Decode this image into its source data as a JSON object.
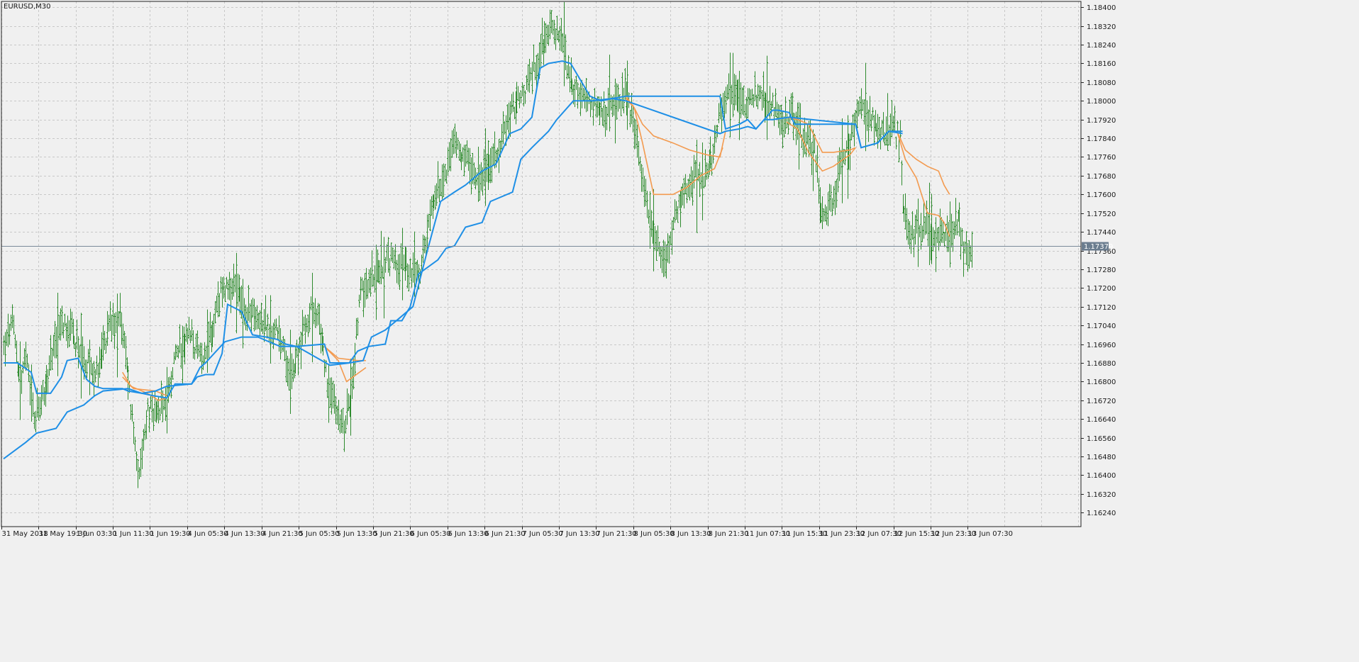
{
  "chart_data": {
    "type": "line",
    "title": "EURUSD,M30",
    "ylim": [
      1.1618,
      1.18425
    ],
    "y_ticks": [
      1.1624,
      1.1632,
      1.164,
      1.1648,
      1.1656,
      1.1664,
      1.1672,
      1.168,
      1.1688,
      1.1696,
      1.1704,
      1.1712,
      1.172,
      1.1728,
      1.1736,
      1.1744,
      1.1752,
      1.176,
      1.1768,
      1.1776,
      1.1784,
      1.1792,
      1.18,
      1.1808,
      1.1816,
      1.1824,
      1.1832,
      1.184
    ],
    "y_tick_labels": [
      "1.16240",
      "1.16320",
      "1.16400",
      "1.16480",
      "1.16560",
      "1.16640",
      "1.16720",
      "1.16800",
      "1.16880",
      "1.16960",
      "1.17040",
      "1.17120",
      "1.17200",
      "1.17280",
      "1.17360",
      "1.17440",
      "1.17520",
      "1.17600",
      "1.17680",
      "1.17760",
      "1.17840",
      "1.17920",
      "1.18000",
      "1.18080",
      "1.18160",
      "1.18240",
      "1.18320",
      "1.18400"
    ],
    "x_tick_labels": [
      "31 May 2018",
      "31 May 19:30",
      "1 Jun 03:30",
      "1 Jun 11:30",
      "1 Jun 19:30",
      "4 Jun 05:30",
      "4 Jun 13:30",
      "4 Jun 21:30",
      "5 Jun 05:30",
      "5 Jun 13:30",
      "5 Jun 21:30",
      "6 Jun 05:30",
      "6 Jun 13:30",
      "6 Jun 21:30",
      "7 Jun 05:30",
      "7 Jun 13:30",
      "7 Jun 21:30",
      "8 Jun 05:30",
      "8 Jun 13:30",
      "8 Jun 21:30",
      "11 Jun 07:30",
      "11 Jun 15:30",
      "11 Jun 23:30",
      "12 Jun 07:30",
      "12 Jun 15:30",
      "12 Jun 23:30",
      "13 Jun 07:30"
    ],
    "grid": true,
    "current_price": 1.17379,
    "current_price_label": "1.17379",
    "colors": {
      "bars": "#2e8b2e",
      "blue": "#1e8fe6",
      "orange": "#f39a4f",
      "price_line": "#7a8a9a",
      "grid": "#c8c8c8",
      "price_label_bg": "#6b7d8f"
    },
    "price_anchors": [
      [
        0,
        1.1693
      ],
      [
        6,
        1.1705
      ],
      [
        12,
        1.168
      ],
      [
        16,
        1.169
      ],
      [
        22,
        1.1663
      ],
      [
        28,
        1.1672
      ],
      [
        36,
        1.1695
      ],
      [
        44,
        1.1706
      ],
      [
        52,
        1.1697
      ],
      [
        60,
        1.1688
      ],
      [
        68,
        1.1683
      ],
      [
        76,
        1.1705
      ],
      [
        84,
        1.171
      ],
      [
        92,
        1.167
      ],
      [
        98,
        1.1638
      ],
      [
        104,
        1.1668
      ],
      [
        110,
        1.1665
      ],
      [
        118,
        1.1673
      ],
      [
        126,
        1.1695
      ],
      [
        134,
        1.17
      ],
      [
        142,
        1.169
      ],
      [
        150,
        1.17
      ],
      [
        158,
        1.172
      ],
      [
        166,
        1.1722
      ],
      [
        174,
        1.1712
      ],
      [
        182,
        1.1708
      ],
      [
        190,
        1.1705
      ],
      [
        198,
        1.17
      ],
      [
        204,
        1.169
      ],
      [
        210,
        1.1686
      ],
      [
        216,
        1.17
      ],
      [
        222,
        1.171
      ],
      [
        228,
        1.1705
      ],
      [
        234,
        1.168
      ],
      [
        240,
        1.1668
      ],
      [
        246,
        1.166
      ],
      [
        252,
        1.168
      ],
      [
        258,
        1.1718
      ],
      [
        264,
        1.1722
      ],
      [
        272,
        1.1728
      ],
      [
        280,
        1.1733
      ],
      [
        290,
        1.173
      ],
      [
        300,
        1.1725
      ],
      [
        310,
        1.1755
      ],
      [
        318,
        1.1768
      ],
      [
        326,
        1.1782
      ],
      [
        334,
        1.1776
      ],
      [
        342,
        1.1765
      ],
      [
        350,
        1.177
      ],
      [
        358,
        1.178
      ],
      [
        366,
        1.1795
      ],
      [
        374,
        1.18
      ],
      [
        382,
        1.1812
      ],
      [
        390,
        1.1825
      ],
      [
        396,
        1.1832
      ],
      [
        402,
        1.1826
      ],
      [
        410,
        1.1808
      ],
      [
        418,
        1.18
      ],
      [
        426,
        1.1798
      ],
      [
        434,
        1.1793
      ],
      [
        442,
        1.18
      ],
      [
        450,
        1.1802
      ],
      [
        456,
        1.1788
      ],
      [
        462,
        1.1765
      ],
      [
        468,
        1.175
      ],
      [
        474,
        1.1738
      ],
      [
        478,
        1.173
      ],
      [
        484,
        1.1748
      ],
      [
        492,
        1.176
      ],
      [
        500,
        1.1767
      ],
      [
        508,
        1.177
      ],
      [
        514,
        1.178
      ],
      [
        520,
        1.18
      ],
      [
        526,
        1.1805
      ],
      [
        532,
        1.18
      ],
      [
        538,
        1.1797
      ],
      [
        546,
        1.1803
      ],
      [
        554,
        1.18
      ],
      [
        562,
        1.179
      ],
      [
        570,
        1.1793
      ],
      [
        578,
        1.1785
      ],
      [
        586,
        1.1778
      ],
      [
        592,
        1.175
      ],
      [
        600,
        1.1758
      ],
      [
        606,
        1.1775
      ],
      [
        612,
        1.1782
      ],
      [
        618,
        1.18
      ],
      [
        624,
        1.1795
      ],
      [
        630,
        1.179
      ],
      [
        636,
        1.1785
      ],
      [
        642,
        1.179
      ],
      [
        648,
        1.1783
      ],
      [
        650,
        1.1755
      ],
      [
        654,
        1.1742
      ],
      [
        660,
        1.1745
      ],
      [
        666,
        1.1748
      ],
      [
        672,
        1.1742
      ],
      [
        678,
        1.1746
      ],
      [
        684,
        1.1742
      ],
      [
        690,
        1.1748
      ],
      [
        694,
        1.1738
      ],
      [
        700,
        1.1734
      ]
    ],
    "blue_fast": [
      [
        0,
        1.1688
      ],
      [
        10,
        1.1688
      ],
      [
        20,
        1.1684
      ],
      [
        24,
        1.1675
      ],
      [
        34,
        1.1675
      ],
      [
        42,
        1.1682
      ],
      [
        46,
        1.1689
      ],
      [
        54,
        1.169
      ],
      [
        60,
        1.1681
      ],
      [
        66,
        1.1678
      ],
      [
        72,
        1.1677
      ],
      [
        86,
        1.1677
      ],
      [
        90,
        1.1676
      ],
      [
        100,
        1.1675
      ],
      [
        108,
        1.1674
      ],
      [
        118,
        1.1673
      ],
      [
        124,
        1.1679
      ],
      [
        136,
        1.1679
      ],
      [
        140,
        1.1682
      ],
      [
        146,
        1.1683
      ],
      [
        152,
        1.1683
      ],
      [
        158,
        1.1692
      ],
      [
        162,
        1.1713
      ],
      [
        172,
        1.171
      ],
      [
        180,
        1.17
      ],
      [
        190,
        1.1699
      ],
      [
        198,
        1.1698
      ],
      [
        204,
        1.1696
      ],
      [
        212,
        1.1695
      ],
      [
        232,
        1.1696
      ],
      [
        236,
        1.1688
      ],
      [
        250,
        1.1688
      ],
      [
        260,
        1.1689
      ],
      [
        266,
        1.1699
      ],
      [
        276,
        1.1702
      ],
      [
        286,
        1.1707
      ],
      [
        296,
        1.1712
      ],
      [
        306,
        1.1735
      ],
      [
        316,
        1.1757
      ],
      [
        326,
        1.1761
      ],
      [
        334,
        1.1764
      ],
      [
        338,
        1.1766
      ],
      [
        346,
        1.177
      ],
      [
        356,
        1.1773
      ],
      [
        366,
        1.1786
      ],
      [
        374,
        1.1788
      ],
      [
        382,
        1.1793
      ],
      [
        388,
        1.1814
      ],
      [
        394,
        1.1816
      ],
      [
        404,
        1.1817
      ],
      [
        410,
        1.1816
      ],
      [
        416,
        1.181
      ],
      [
        424,
        1.1802
      ],
      [
        432,
        1.18
      ],
      [
        440,
        1.1801
      ],
      [
        450,
        1.1802
      ],
      [
        518,
        1.1802
      ],
      [
        522,
        1.1788
      ],
      [
        532,
        1.179
      ],
      [
        538,
        1.1792
      ],
      [
        544,
        1.1788
      ],
      [
        550,
        1.1792
      ],
      [
        556,
        1.1796
      ],
      [
        560,
        1.1796
      ],
      [
        568,
        1.1795
      ],
      [
        572,
        1.179
      ],
      [
        588,
        1.179
      ],
      [
        616,
        1.179
      ],
      [
        620,
        1.178
      ],
      [
        632,
        1.1782
      ],
      [
        640,
        1.1787
      ],
      [
        650,
        1.1787
      ]
    ],
    "blue_slow": [
      [
        0,
        1.1647
      ],
      [
        16,
        1.1654
      ],
      [
        24,
        1.1658
      ],
      [
        38,
        1.166
      ],
      [
        46,
        1.1667
      ],
      [
        58,
        1.167
      ],
      [
        66,
        1.1674
      ],
      [
        72,
        1.1676
      ],
      [
        90,
        1.1677
      ],
      [
        100,
        1.1675
      ],
      [
        110,
        1.1676
      ],
      [
        118,
        1.1678
      ],
      [
        136,
        1.1679
      ],
      [
        142,
        1.1686
      ],
      [
        146,
        1.1688
      ],
      [
        160,
        1.1697
      ],
      [
        172,
        1.1699
      ],
      [
        184,
        1.1699
      ],
      [
        200,
        1.1695
      ],
      [
        212,
        1.1695
      ],
      [
        236,
        1.1687
      ],
      [
        250,
        1.1688
      ],
      [
        256,
        1.1693
      ],
      [
        264,
        1.1695
      ],
      [
        276,
        1.1696
      ],
      [
        280,
        1.1706
      ],
      [
        288,
        1.1706
      ],
      [
        294,
        1.1712
      ],
      [
        300,
        1.1726
      ],
      [
        314,
        1.1732
      ],
      [
        320,
        1.1737
      ],
      [
        326,
        1.1738
      ],
      [
        334,
        1.1746
      ],
      [
        346,
        1.1748
      ],
      [
        352,
        1.1757
      ],
      [
        368,
        1.1761
      ],
      [
        374,
        1.1775
      ],
      [
        382,
        1.178
      ],
      [
        394,
        1.1787
      ],
      [
        400,
        1.1792
      ],
      [
        412,
        1.18
      ],
      [
        426,
        1.18
      ],
      [
        440,
        1.1801
      ],
      [
        450,
        1.18
      ],
      [
        518,
        1.1786
      ],
      [
        522,
        1.1787
      ],
      [
        532,
        1.1788
      ],
      [
        538,
        1.1789
      ],
      [
        544,
        1.1788
      ],
      [
        550,
        1.1792
      ],
      [
        556,
        1.1792
      ],
      [
        568,
        1.1793
      ],
      [
        616,
        1.179
      ],
      [
        620,
        1.178
      ],
      [
        632,
        1.1782
      ],
      [
        640,
        1.1787
      ],
      [
        650,
        1.1786
      ]
    ],
    "orange_segments": [
      [
        [
          86,
          1.1684
        ],
        [
          92,
          1.1678
        ],
        [
          104,
          1.1675
        ],
        [
          112,
          1.1672
        ],
        [
          118,
          1.1673
        ]
      ],
      [
        [
          86,
          1.1682
        ],
        [
          94,
          1.1677
        ],
        [
          110,
          1.1676
        ],
        [
          118,
          1.1674
        ]
      ],
      [
        [
          232,
          1.1695
        ],
        [
          242,
          1.169
        ],
        [
          256,
          1.1689
        ],
        [
          262,
          1.1689
        ]
      ],
      [
        [
          232,
          1.1695
        ],
        [
          242,
          1.1689
        ],
        [
          248,
          1.168
        ],
        [
          262,
          1.1686
        ]
      ],
      [
        [
          450,
          1.1802
        ],
        [
          456,
          1.1797
        ],
        [
          462,
          1.179
        ],
        [
          470,
          1.1785
        ],
        [
          484,
          1.1782
        ],
        [
          496,
          1.1779
        ],
        [
          508,
          1.1777
        ],
        [
          518,
          1.1776
        ],
        [
          522,
          1.1787
        ]
      ],
      [
        [
          450,
          1.1801
        ],
        [
          456,
          1.1797
        ],
        [
          462,
          1.1782
        ],
        [
          470,
          1.176
        ],
        [
          484,
          1.176
        ],
        [
          494,
          1.1763
        ],
        [
          504,
          1.1768
        ],
        [
          514,
          1.1771
        ],
        [
          520,
          1.178
        ]
      ],
      [
        [
          566,
          1.1793
        ],
        [
          574,
          1.1792
        ],
        [
          582,
          1.179
        ],
        [
          592,
          1.1778
        ],
        [
          600,
          1.1778
        ],
        [
          612,
          1.1779
        ],
        [
          616,
          1.178
        ]
      ],
      [
        [
          566,
          1.1791
        ],
        [
          574,
          1.1788
        ],
        [
          582,
          1.1778
        ],
        [
          592,
          1.177
        ],
        [
          600,
          1.1772
        ],
        [
          612,
          1.1777
        ],
        [
          616,
          1.178
        ]
      ],
      [
        [
          646,
          1.1787
        ],
        [
          652,
          1.1779
        ],
        [
          660,
          1.1775
        ],
        [
          668,
          1.1772
        ],
        [
          676,
          1.177
        ],
        [
          680,
          1.1764
        ],
        [
          684,
          1.176
        ]
      ],
      [
        [
          646,
          1.1787
        ],
        [
          652,
          1.1775
        ],
        [
          660,
          1.1767
        ],
        [
          668,
          1.1752
        ],
        [
          676,
          1.1751
        ],
        [
          680,
          1.1748
        ],
        [
          684,
          1.1742
        ]
      ]
    ]
  }
}
